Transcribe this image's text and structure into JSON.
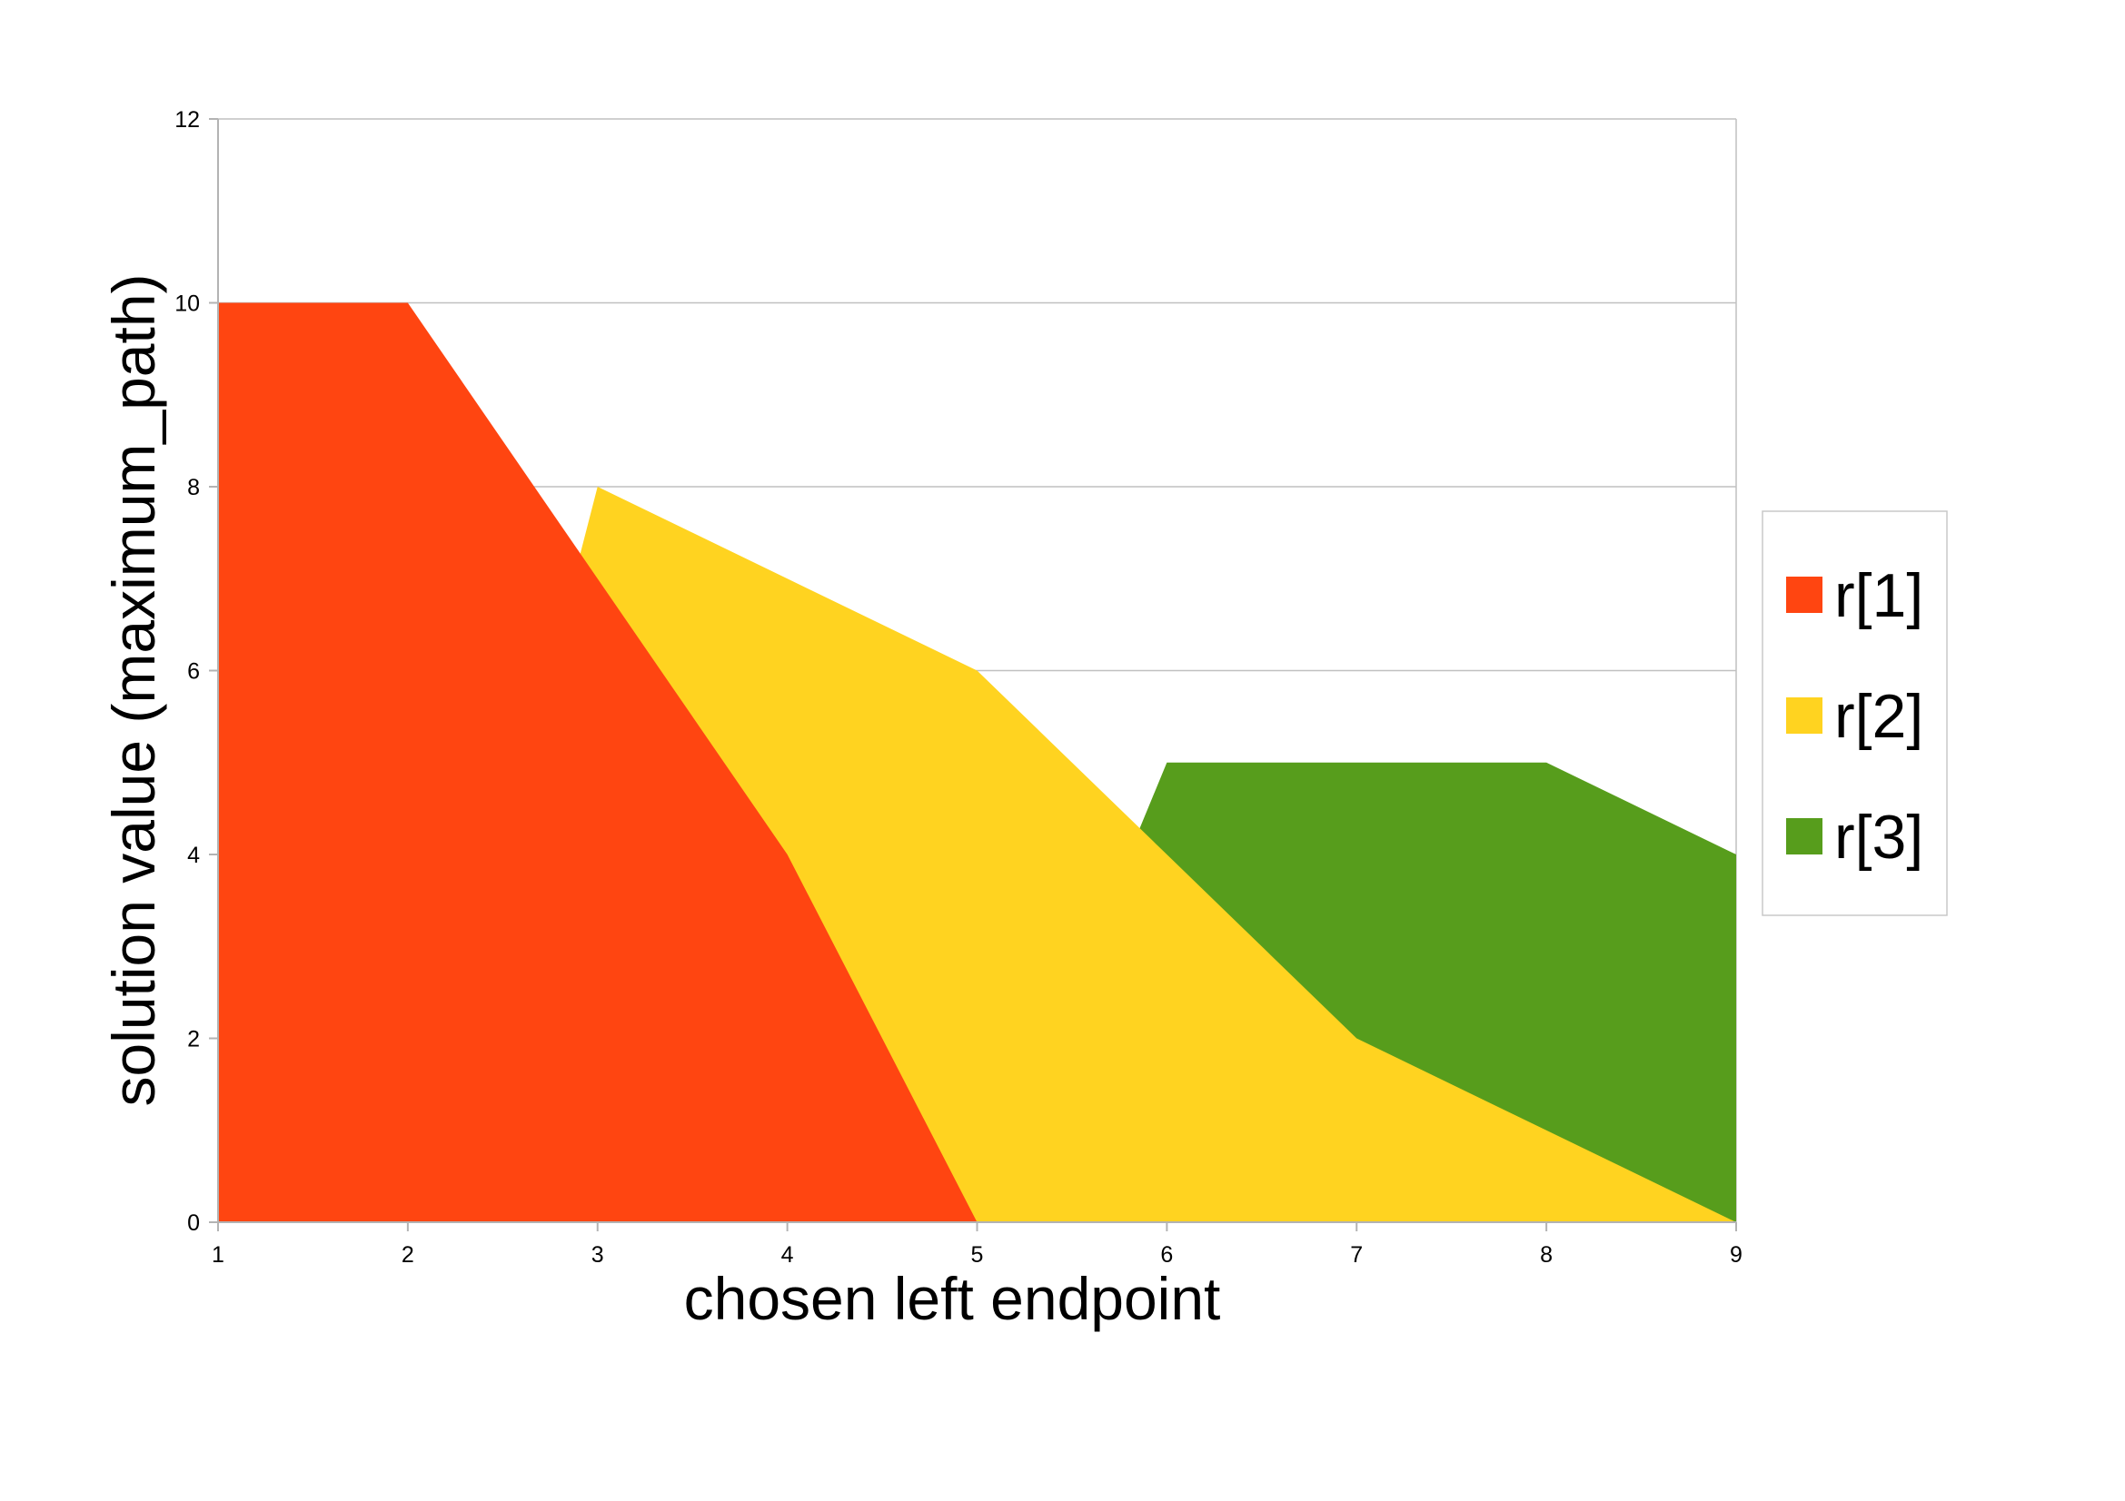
{
  "chart_data": {
    "type": "area",
    "x": [
      1,
      2,
      3,
      4,
      5,
      6,
      7,
      8,
      9
    ],
    "series": [
      {
        "name": "r[1]",
        "color": "#FF4511",
        "values": [
          10,
          10,
          7,
          4,
          0,
          0,
          0,
          0,
          0
        ]
      },
      {
        "name": "r[2]",
        "color": "#FFD320",
        "values": [
          0,
          0,
          8,
          7,
          6,
          4,
          2,
          1,
          0
        ]
      },
      {
        "name": "r[3]",
        "color": "#579D1C",
        "values": [
          0,
          0,
          0,
          0,
          0,
          5,
          5,
          5,
          4
        ]
      }
    ],
    "xlabel": "chosen left endpoint",
    "ylabel": "solution value (maximum_path)",
    "xlim": [
      1,
      9
    ],
    "ylim": [
      0,
      12
    ],
    "yticks": [
      0,
      2,
      4,
      6,
      8,
      10,
      12
    ],
    "xticks": [
      1,
      2,
      3,
      4,
      5,
      6,
      7,
      8,
      9
    ],
    "grid": "horizontal",
    "legend": "right",
    "colors": {
      "grid": "#C0C0C0",
      "axis": "#B3B3B3",
      "legend_border": "#C8C8C8"
    }
  }
}
